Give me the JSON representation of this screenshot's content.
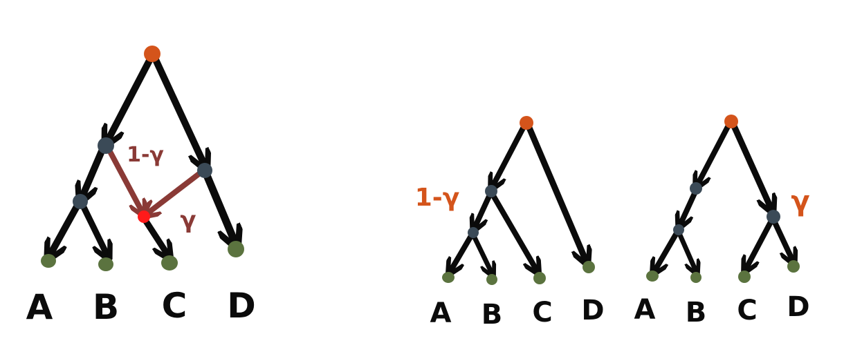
{
  "colors": {
    "root": "#d4541b",
    "internal": "#3b4a57",
    "leaf": "#5b733f",
    "edge": "#0b0b0b",
    "hybrid_edge": "#8a3a36",
    "hybrid_node": "#ff1a1a",
    "param_text_network": "#8a3a36",
    "param_text_tree": "#d4541b"
  },
  "network": {
    "leaves": [
      "A",
      "B",
      "C",
      "D"
    ],
    "gamma_complement_label": "1-γ",
    "gamma_label": "γ"
  },
  "tree_left": {
    "leaves": [
      "A",
      "B",
      "C",
      "D"
    ],
    "weight_label": "1-γ"
  },
  "tree_right": {
    "leaves": [
      "A",
      "B",
      "C",
      "D"
    ],
    "weight_label": "γ"
  }
}
